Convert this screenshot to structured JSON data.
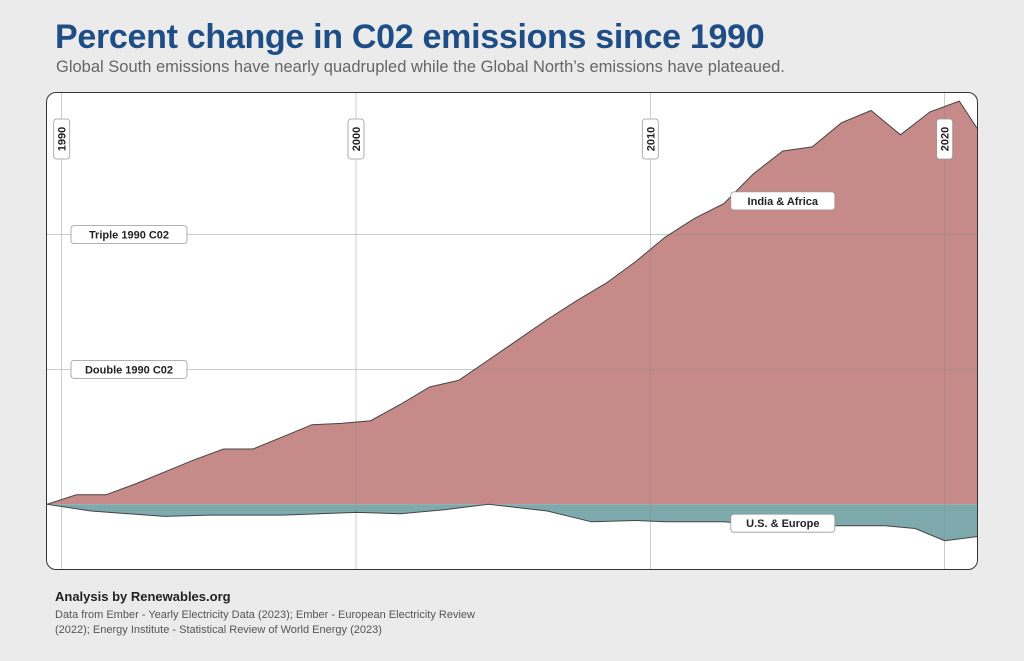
{
  "header": {
    "title": "Percent change in C02 emissions since 1990",
    "subtitle": "Global South emissions have nearly quadrupled while the Global North’s emissions have plateaued."
  },
  "footer": {
    "credit": "Analysis by Renewables.org",
    "source": "Data from Ember - Yearly Electricity Data (2023); Ember - European Electricity Review (2022); Energy Institute - Statistical Review of World Energy (2023)"
  },
  "chart_data": {
    "type": "area",
    "title": "Percent change in C02 emissions since 1990",
    "xlabel": "",
    "ylabel": "",
    "xlim": [
      1989.5,
      2021.1
    ],
    "ylim": [
      -48,
      305
    ],
    "grid": true,
    "colors": {
      "south": "#c68b89",
      "north": "#7eaaad",
      "line": "#444444"
    },
    "x_ticks": [
      {
        "year": 1990,
        "label": "1990"
      },
      {
        "year": 2000,
        "label": "2000"
      },
      {
        "year": 2010,
        "label": "2010"
      },
      {
        "year": 2020,
        "label": "2020"
      }
    ],
    "reference_lines": [
      {
        "value": 100,
        "label": "Double 1990 C02"
      },
      {
        "value": 200,
        "label": "Triple 1990 C02"
      }
    ],
    "series": [
      {
        "name": "India & Africa",
        "x": [
          1989.5,
          1990.5,
          1991.5,
          1992.5,
          1993.5,
          1994.5,
          1995.5,
          1996.5,
          1997.5,
          1998.5,
          1999.5,
          2000.5,
          2001.5,
          2002.5,
          2003.5,
          2004.5,
          2005.5,
          2006.5,
          2007.5,
          2008.5,
          2009.5,
          2010.5,
          2011.5,
          2012.5,
          2013.5,
          2014.5,
          2015.5,
          2016.5,
          2017.5,
          2018.5,
          2019.5,
          2020.5,
          2021.1
        ],
        "values": [
          0,
          7,
          7,
          15,
          24,
          33,
          41,
          41,
          50,
          59,
          60,
          62,
          74,
          87,
          92,
          107,
          122,
          137,
          151,
          164,
          180,
          198,
          212,
          223,
          245,
          262,
          265,
          283,
          292,
          274,
          291,
          299,
          279
        ],
        "label_x": 2014.5,
        "label_value": 225
      },
      {
        "name": "U.S. & Europe",
        "x": [
          1989.5,
          1991,
          1993.5,
          1995,
          1997.5,
          2000,
          2001.5,
          2003,
          2004.5,
          2006.5,
          2008,
          2009.5,
          2010.5,
          2011.5,
          2012.5,
          2014,
          2016,
          2018,
          2019,
          2020,
          2021.1
        ],
        "values": [
          0,
          -5,
          -9,
          -8,
          -8,
          -6,
          -7,
          -4,
          0,
          -5,
          -13,
          -12,
          -13,
          -13,
          -13,
          -16,
          -16,
          -16,
          -18,
          -27,
          -24
        ],
        "label_x": 2014.5,
        "label_value": -14
      }
    ]
  }
}
